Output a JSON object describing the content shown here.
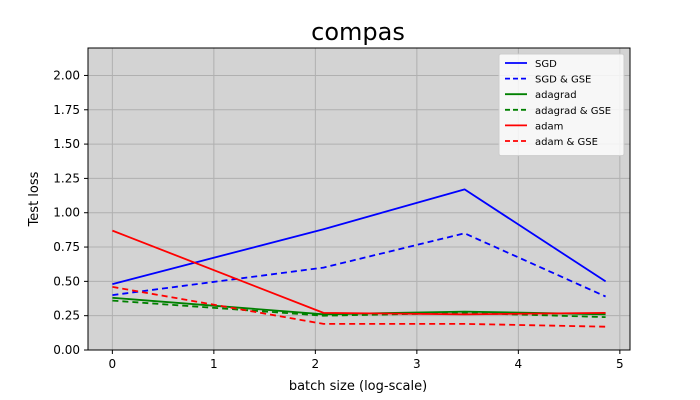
{
  "chart_data": {
    "type": "line",
    "title": "compas",
    "xlabel": "batch size (log-scale)",
    "ylabel": "Test loss",
    "xlim": [
      -0.24,
      5.1
    ],
    "ylim": [
      0.0,
      2.2
    ],
    "x_ticks": [
      0,
      1,
      2,
      3,
      4,
      5
    ],
    "x_tick_labels": [
      "0",
      "1",
      "2",
      "3",
      "4",
      "5"
    ],
    "y_ticks": [
      0.0,
      0.25,
      0.5,
      0.75,
      1.0,
      1.25,
      1.5,
      1.75,
      2.0
    ],
    "y_tick_labels": [
      "0.00",
      "0.25",
      "0.50",
      "0.75",
      "1.00",
      "1.25",
      "1.50",
      "1.75",
      "2.00"
    ],
    "grid": true,
    "background": "#d3d3d3",
    "legend_position": "top-right",
    "series": [
      {
        "name": "SGD",
        "color": "#0000ff",
        "dash": "solid",
        "x": [
          0,
          2.08,
          3.47,
          4.86
        ],
        "y": [
          0.48,
          0.88,
          1.17,
          0.5
        ]
      },
      {
        "name": "SGD & GSE",
        "color": "#0000ff",
        "dash": "dashed",
        "x": [
          0,
          2.08,
          3.47,
          4.86
        ],
        "y": [
          0.4,
          0.6,
          0.85,
          0.39
        ]
      },
      {
        "name": "adagrad",
        "color": "#008000",
        "dash": "solid",
        "x": [
          0,
          2.08,
          3.47,
          4.86
        ],
        "y": [
          0.38,
          0.26,
          0.28,
          0.26
        ]
      },
      {
        "name": "adagrad & GSE",
        "color": "#008000",
        "dash": "dashed",
        "x": [
          0,
          2.08,
          3.47,
          4.86
        ],
        "y": [
          0.36,
          0.25,
          0.27,
          0.24
        ]
      },
      {
        "name": "adam",
        "color": "#ff0000",
        "dash": "solid",
        "x": [
          0,
          2.08,
          3.47,
          4.86
        ],
        "y": [
          0.87,
          0.27,
          0.26,
          0.27
        ]
      },
      {
        "name": "adam & GSE",
        "color": "#ff0000",
        "dash": "dashed",
        "x": [
          0,
          2.08,
          3.47,
          4.86
        ],
        "y": [
          0.46,
          0.19,
          0.19,
          0.17
        ]
      }
    ]
  }
}
